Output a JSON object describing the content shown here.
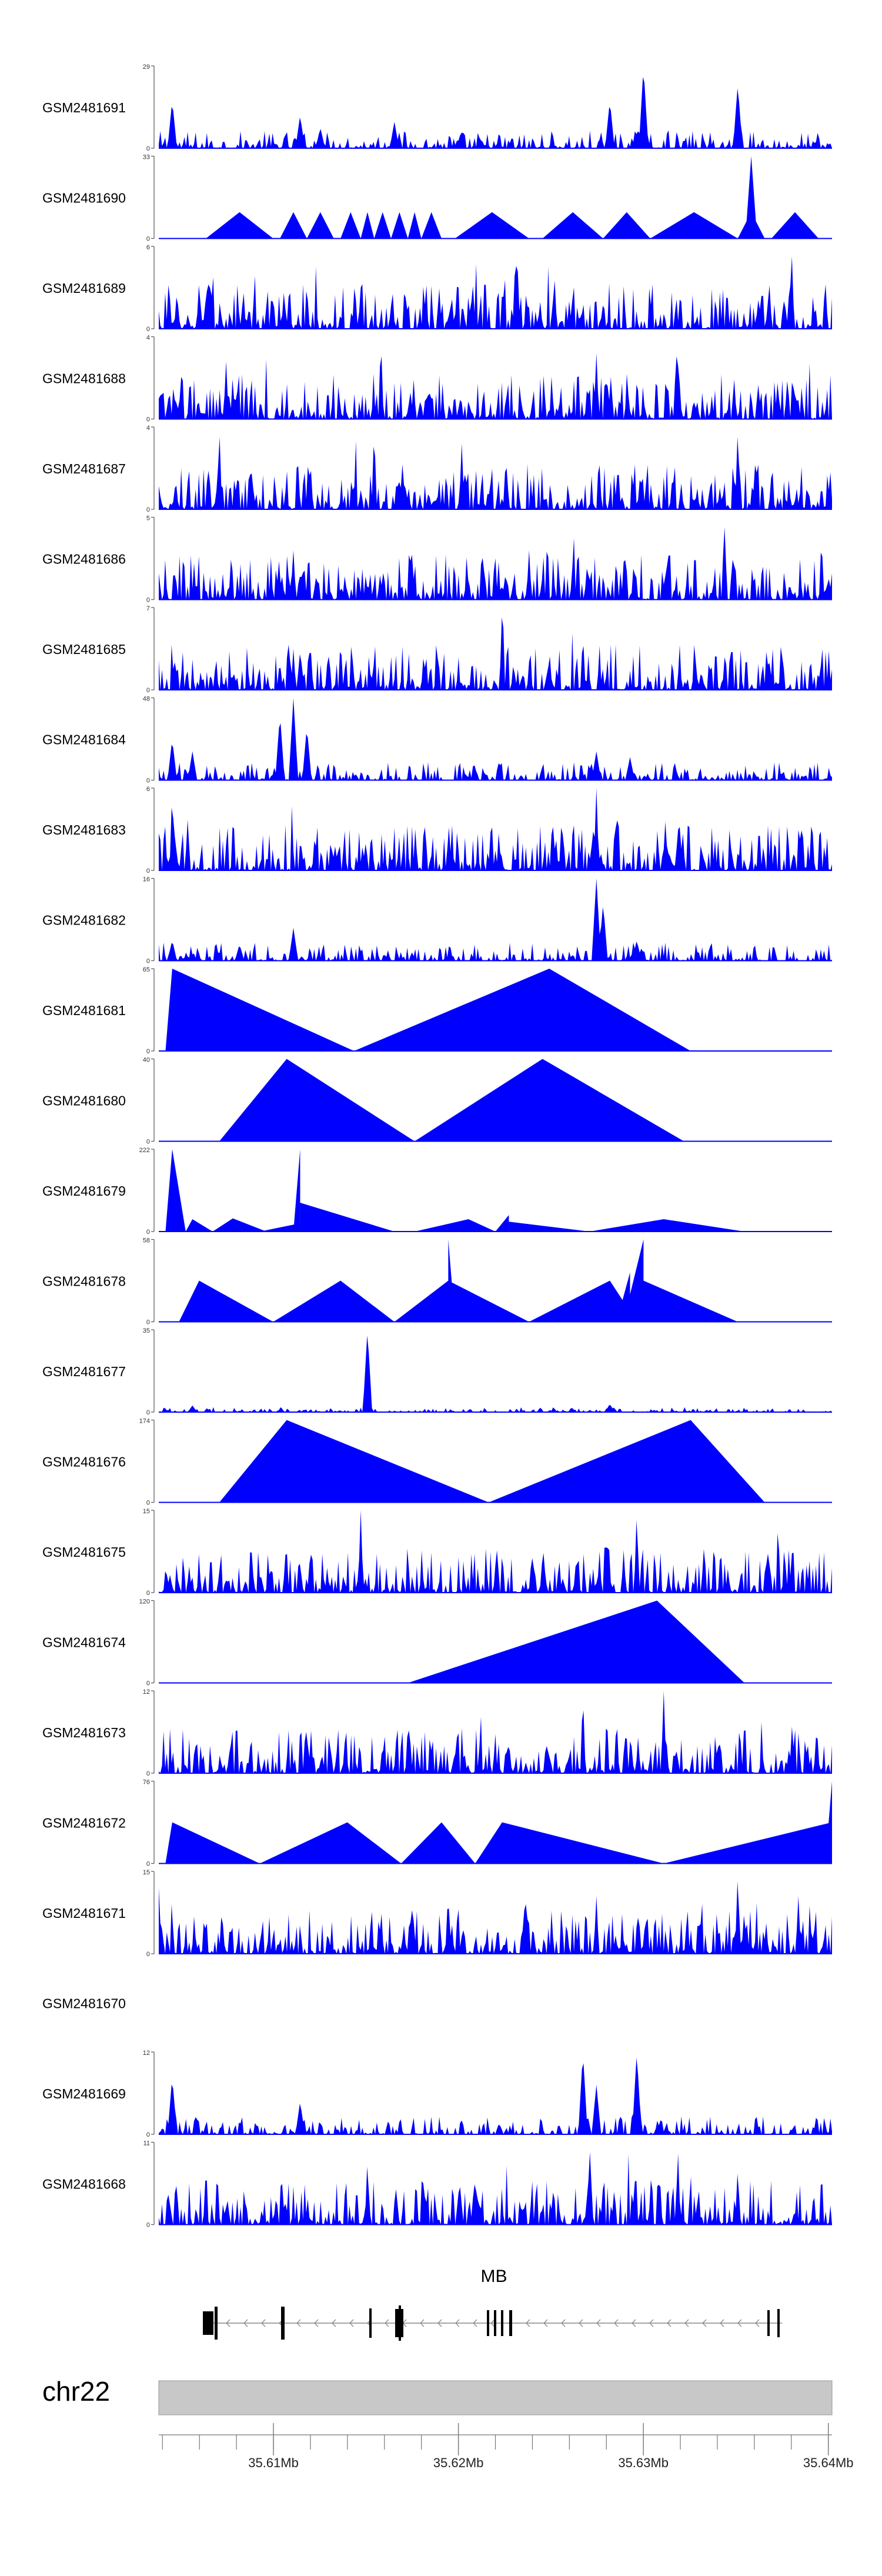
{
  "chart_data": {
    "type": "area",
    "title": "",
    "color": "#0000ff",
    "gene": {
      "name": "MB",
      "strand": "-"
    },
    "chromosome": {
      "label": "chr22",
      "bar_color": "#c8c8c8"
    },
    "genome_axis": {
      "range_mb": [
        35.6038,
        35.6402
      ],
      "major_tick_labels": [
        "35.61Mb",
        "35.62Mb",
        "35.63Mb",
        "35.64Mb"
      ],
      "major_ticks_mb": [
        35.61,
        35.62,
        35.63,
        35.64
      ],
      "minor_step_mb": 0.002
    },
    "tracks": [
      {
        "name": "GSM2481691",
        "ymax": 29,
        "ytick_labels": [
          "0",
          "29"
        ],
        "style": "peaky",
        "peaks": [
          [
            0.02,
            0.58
          ],
          [
            0.21,
            0.4
          ],
          [
            0.35,
            0.32
          ],
          [
            0.67,
            0.58
          ],
          [
            0.72,
            1.0
          ],
          [
            0.86,
            0.78
          ],
          [
            0.24,
            0.25
          ]
        ]
      },
      {
        "name": "GSM2481690",
        "ymax": 33,
        "ytick_labels": [
          "0",
          "33"
        ],
        "style": "sparse",
        "peaks": [
          [
            0.88,
            1.0
          ]
        ]
      },
      {
        "name": "GSM2481689",
        "ymax": 6,
        "ytick_labels": [
          "0",
          "6"
        ],
        "style": "spiky",
        "peaks": [
          [
            0.53,
            1.0
          ],
          [
            0.94,
            1.0
          ],
          [
            0.3,
            0.5
          ],
          [
            0.06,
            0.6
          ]
        ]
      },
      {
        "name": "GSM2481688",
        "ymax": 4,
        "ytick_labels": [
          "0",
          "4"
        ],
        "style": "spiky",
        "peaks": [
          [
            0.33,
            1.0
          ],
          [
            0.77,
            1.0
          ],
          [
            0.65,
            0.8
          ],
          [
            0.1,
            0.7
          ]
        ]
      },
      {
        "name": "GSM2481687",
        "ymax": 4,
        "ytick_labels": [
          "0",
          "4"
        ],
        "style": "spiky",
        "peaks": [
          [
            0.09,
            1.0
          ],
          [
            0.32,
            1.0
          ],
          [
            0.86,
            1.0
          ],
          [
            0.45,
            0.8
          ]
        ]
      },
      {
        "name": "GSM2481686",
        "ymax": 5,
        "ytick_labels": [
          "0",
          "5"
        ],
        "style": "spiky",
        "peaks": [
          [
            0.84,
            1.0
          ],
          [
            0.2,
            0.6
          ],
          [
            0.55,
            0.6
          ]
        ]
      },
      {
        "name": "GSM2481685",
        "ymax": 7,
        "ytick_labels": [
          "0",
          "7"
        ],
        "style": "spiky",
        "peaks": [
          [
            0.51,
            1.0
          ],
          [
            0.63,
            0.7
          ],
          [
            0.2,
            0.5
          ]
        ]
      },
      {
        "name": "GSM2481684",
        "ymax": 48,
        "ytick_labels": [
          "0",
          "48"
        ],
        "style": "peaky",
        "peaks": [
          [
            0.02,
            0.5
          ],
          [
            0.05,
            0.35
          ],
          [
            0.18,
            0.8
          ],
          [
            0.2,
            1.0
          ],
          [
            0.22,
            0.65
          ],
          [
            0.65,
            0.35
          ],
          [
            0.7,
            0.28
          ]
        ]
      },
      {
        "name": "GSM2481683",
        "ymax": 6,
        "ytick_labels": [
          "0",
          "6"
        ],
        "style": "spiky",
        "peaks": [
          [
            0.02,
            1.0
          ],
          [
            0.65,
            1.0
          ],
          [
            0.68,
            0.8
          ],
          [
            0.97,
            0.7
          ]
        ]
      },
      {
        "name": "GSM2481682",
        "ymax": 16,
        "ytick_labels": [
          "0",
          "16"
        ],
        "style": "peaky",
        "peaks": [
          [
            0.65,
            1.0
          ],
          [
            0.66,
            0.7
          ],
          [
            0.71,
            0.25
          ],
          [
            0.2,
            0.4
          ],
          [
            0.02,
            0.25
          ],
          [
            0.12,
            0.2
          ]
        ]
      },
      {
        "name": "GSM2481681",
        "ymax": 65,
        "ytick_labels": [
          "0",
          "65"
        ],
        "style": "tri",
        "tris": [
          [
            0.01,
            0.29,
            0.02,
            1.0
          ],
          [
            0.29,
            0.79,
            0.58,
            1.0
          ]
        ]
      },
      {
        "name": "GSM2481680",
        "ymax": 40,
        "ytick_labels": [
          "0",
          "40"
        ],
        "style": "tri",
        "tris": [
          [
            0.09,
            0.38,
            0.19,
            1.0
          ],
          [
            0.38,
            0.78,
            0.57,
            1.0
          ]
        ]
      },
      {
        "name": "GSM2481679",
        "ymax": 222,
        "ytick_labels": [
          "0",
          "222"
        ],
        "style": "tri",
        "tris": [
          [
            0.01,
            0.04,
            0.02,
            1.0
          ],
          [
            0.04,
            0.08,
            0.05,
            0.15
          ],
          [
            0.08,
            0.16,
            0.11,
            0.16
          ],
          [
            0.15,
            0.22,
            0.21,
            0.1
          ],
          [
            0.2,
            0.21,
            0.21,
            1.0
          ],
          [
            0.21,
            0.35,
            0.21,
            0.35
          ],
          [
            0.38,
            0.5,
            0.46,
            0.15
          ],
          [
            0.5,
            0.52,
            0.52,
            0.2
          ],
          [
            0.52,
            0.64,
            0.52,
            0.12
          ],
          [
            0.64,
            0.87,
            0.75,
            0.15
          ]
        ]
      },
      {
        "name": "GSM2481678",
        "ymax": 58,
        "ytick_labels": [
          "0",
          "58"
        ],
        "style": "tri",
        "tris": [
          [
            0.03,
            0.17,
            0.06,
            0.5
          ],
          [
            0.17,
            0.35,
            0.27,
            0.5
          ],
          [
            0.35,
            0.55,
            0.43,
            0.5
          ],
          [
            0.43,
            0.44,
            0.43,
            1.0
          ],
          [
            0.55,
            0.71,
            0.67,
            0.5
          ],
          [
            0.68,
            0.7,
            0.7,
            0.6
          ],
          [
            0.69,
            0.72,
            0.72,
            1.0
          ],
          [
            0.7,
            0.86,
            0.72,
            0.5
          ]
        ]
      },
      {
        "name": "GSM2481677",
        "ymax": 35,
        "ytick_labels": [
          "0",
          "35"
        ],
        "style": "flat",
        "peaks": [
          [
            0.31,
            1.0
          ],
          [
            0.67,
            0.1
          ],
          [
            0.05,
            0.08
          ]
        ]
      },
      {
        "name": "GSM2481676",
        "ymax": 174,
        "ytick_labels": [
          "0",
          "174"
        ],
        "style": "tri",
        "tris": [
          [
            0.09,
            0.49,
            0.19,
            1.0
          ],
          [
            0.49,
            0.9,
            0.79,
            1.0
          ]
        ]
      },
      {
        "name": "GSM2481675",
        "ymax": 15,
        "ytick_labels": [
          "0",
          "15"
        ],
        "style": "spiky",
        "peaks": [
          [
            0.3,
            1.0
          ],
          [
            0.71,
            1.0
          ],
          [
            0.21,
            0.4
          ],
          [
            0.81,
            0.6
          ]
        ]
      },
      {
        "name": "GSM2481674",
        "ymax": 120,
        "ytick_labels": [
          "0",
          "120"
        ],
        "style": "tri",
        "tris": [
          [
            0.37,
            0.87,
            0.74,
            1.0
          ]
        ]
      },
      {
        "name": "GSM2481673",
        "ymax": 12,
        "ytick_labels": [
          "0",
          "12"
        ],
        "style": "spiky",
        "peaks": [
          [
            0.63,
            1.0
          ],
          [
            0.75,
            1.0
          ],
          [
            0.68,
            0.7
          ],
          [
            0.87,
            0.6
          ]
        ]
      },
      {
        "name": "GSM2481672",
        "ymax": 76,
        "ytick_labels": [
          "0",
          "76"
        ],
        "style": "tri",
        "tris": [
          [
            0.01,
            0.15,
            0.02,
            0.5
          ],
          [
            0.15,
            0.36,
            0.28,
            0.5
          ],
          [
            0.36,
            0.47,
            0.42,
            0.5
          ],
          [
            0.47,
            0.75,
            0.51,
            0.5
          ],
          [
            0.75,
            1.0,
            1.0,
            0.5
          ],
          [
            0.99,
            1.0,
            1.0,
            1.0
          ]
        ]
      },
      {
        "name": "GSM2481671",
        "ymax": 15,
        "ytick_labels": [
          "0",
          "15"
        ],
        "style": "spiky",
        "peaks": [
          [
            0.86,
            1.0
          ],
          [
            0.0,
            0.8
          ],
          [
            0.65,
            0.7
          ],
          [
            0.95,
            0.7
          ]
        ]
      },
      {
        "name": "GSM2481670",
        "ymax": null,
        "ytick_labels": [],
        "style": "empty"
      },
      {
        "name": "GSM2481669",
        "ymax": 12,
        "ytick_labels": [
          "0",
          "12"
        ],
        "style": "peaky",
        "peaks": [
          [
            0.63,
            1.0
          ],
          [
            0.71,
            1.0
          ],
          [
            0.02,
            0.7
          ],
          [
            0.65,
            0.6
          ],
          [
            0.21,
            0.4
          ]
        ]
      },
      {
        "name": "GSM2481668",
        "ymax": 11,
        "ytick_labels": [
          "0",
          "11"
        ],
        "style": "spiky",
        "peaks": [
          [
            0.64,
            1.0
          ],
          [
            0.31,
            0.8
          ],
          [
            0.07,
            0.7
          ],
          [
            0.86,
            0.7
          ]
        ]
      }
    ]
  }
}
